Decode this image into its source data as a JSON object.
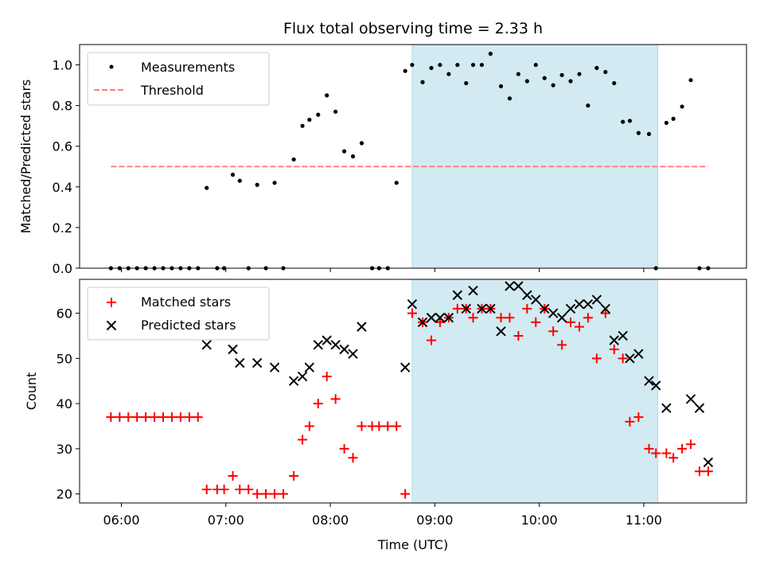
{
  "chart_data": [
    {
      "type": "scatter",
      "title": "Flux total observing time = 2.33 h",
      "xlabel": "",
      "ylabel": "Matched/Predicted stars",
      "xlim": [
        "05:36",
        "11:59"
      ],
      "ylim": [
        0,
        1.1
      ],
      "x_ticks": [
        "06:00",
        "07:00",
        "08:00",
        "09:00",
        "10:00",
        "11:00"
      ],
      "x_tick_labels_shown": false,
      "y_ticks": [
        "0.0",
        "0.2",
        "0.4",
        "0.6",
        "0.8",
        "1.0"
      ],
      "highlight_span": {
        "start": "08:47",
        "end": "11:08",
        "color": "#add8e6"
      },
      "legend": {
        "position": "top-left",
        "entries": [
          "Measurements",
          "Threshold"
        ]
      },
      "series": [
        {
          "name": "Measurements",
          "marker": "dot",
          "color": "#000000",
          "x": [
            "05:54",
            "05:59",
            "06:04",
            "06:09",
            "06:14",
            "06:19",
            "06:24",
            "06:29",
            "06:34",
            "06:39",
            "06:44",
            "06:49",
            "06:55",
            "06:59",
            "07:04",
            "07:08",
            "07:13",
            "07:18",
            "07:23",
            "07:28",
            "07:33",
            "07:39",
            "07:44",
            "07:48",
            "07:53",
            "07:58",
            "08:03",
            "08:08",
            "08:13",
            "08:18",
            "08:24",
            "08:28",
            "08:33",
            "08:38",
            "08:43",
            "08:47",
            "08:53",
            "08:58",
            "09:03",
            "09:08",
            "09:13",
            "09:18",
            "09:22",
            "09:27",
            "09:32",
            "09:38",
            "09:43",
            "09:48",
            "09:53",
            "09:58",
            "10:03",
            "10:08",
            "10:13",
            "10:18",
            "10:23",
            "10:28",
            "10:33",
            "10:38",
            "10:43",
            "10:48",
            "10:52",
            "10:57",
            "11:03",
            "11:07",
            "11:13",
            "11:17",
            "11:22",
            "11:27",
            "11:32",
            "11:37"
          ],
          "y": [
            0.0,
            0.0,
            0.0,
            0.0,
            0.0,
            0.0,
            0.0,
            0.0,
            0.0,
            0.0,
            0.0,
            0.395,
            0.0,
            0.0,
            0.46,
            0.43,
            0.0,
            0.41,
            0.0,
            0.42,
            0.0,
            0.535,
            0.7,
            0.73,
            0.755,
            0.85,
            0.77,
            0.575,
            0.55,
            0.615,
            0.0,
            0.0,
            0.0,
            0.42,
            0.97,
            1.0,
            0.915,
            0.985,
            1.0,
            0.955,
            1.0,
            0.91,
            1.0,
            1.0,
            1.055,
            0.895,
            0.835,
            0.955,
            0.92,
            1.0,
            0.935,
            0.9,
            0.95,
            0.92,
            0.955,
            0.8,
            0.985,
            0.965,
            0.91,
            0.72,
            0.725,
            0.665,
            0.66,
            0.0,
            0.715,
            0.735,
            0.795,
            0.925,
            0.0,
            0.0
          ]
        },
        {
          "name": "Threshold",
          "style": "dashed",
          "color": "#ff7f7f",
          "x": [
            "05:54",
            "11:37"
          ],
          "y": [
            0.5,
            0.5
          ]
        }
      ]
    },
    {
      "type": "scatter",
      "title": "",
      "xlabel": "Time (UTC)",
      "ylabel": "Count",
      "xlim": [
        "05:36",
        "11:59"
      ],
      "ylim": [
        18,
        67.5
      ],
      "x_ticks": [
        "06:00",
        "07:00",
        "08:00",
        "09:00",
        "10:00",
        "11:00"
      ],
      "y_ticks": [
        "20",
        "30",
        "40",
        "50",
        "60"
      ],
      "highlight_span": {
        "start": "08:47",
        "end": "11:08",
        "color": "#add8e6"
      },
      "legend": {
        "position": "top-left",
        "entries": [
          "Matched stars",
          "Predicted stars"
        ]
      },
      "series": [
        {
          "name": "Matched stars",
          "marker": "plus",
          "color": "#ff0000",
          "x": [
            "05:54",
            "05:59",
            "06:04",
            "06:09",
            "06:14",
            "06:19",
            "06:24",
            "06:29",
            "06:34",
            "06:39",
            "06:44",
            "06:49",
            "06:55",
            "06:59",
            "07:04",
            "07:08",
            "07:13",
            "07:18",
            "07:23",
            "07:28",
            "07:33",
            "07:39",
            "07:44",
            "07:48",
            "07:53",
            "07:58",
            "08:03",
            "08:08",
            "08:13",
            "08:18",
            "08:24",
            "08:28",
            "08:33",
            "08:38",
            "08:43",
            "08:47",
            "08:53",
            "08:58",
            "09:03",
            "09:08",
            "09:13",
            "09:18",
            "09:22",
            "09:27",
            "09:32",
            "09:38",
            "09:43",
            "09:48",
            "09:53",
            "09:58",
            "10:03",
            "10:08",
            "10:13",
            "10:18",
            "10:23",
            "10:28",
            "10:33",
            "10:38",
            "10:43",
            "10:48",
            "10:52",
            "10:57",
            "11:03",
            "11:07",
            "11:13",
            "11:17",
            "11:22",
            "11:27",
            "11:32",
            "11:37"
          ],
          "y": [
            37,
            37,
            37,
            37,
            37,
            37,
            37,
            37,
            37,
            37,
            37,
            21,
            21,
            21,
            24,
            21,
            21,
            20,
            20,
            20,
            20,
            24,
            32,
            35,
            40,
            46,
            41,
            30,
            28,
            35,
            35,
            35,
            35,
            35,
            20,
            60,
            58,
            54,
            58,
            59,
            61,
            61,
            59,
            61,
            61,
            59,
            59,
            55,
            61,
            58,
            61,
            56,
            53,
            58,
            57,
            59,
            50,
            60,
            52,
            50,
            36,
            37,
            30,
            29,
            29,
            28,
            30,
            31,
            25,
            25
          ]
        },
        {
          "name": "Predicted stars",
          "marker": "x",
          "color": "#000000",
          "x": [
            "06:49",
            "07:04",
            "07:08",
            "07:18",
            "07:28",
            "07:39",
            "07:44",
            "07:48",
            "07:53",
            "07:58",
            "08:03",
            "08:08",
            "08:13",
            "08:18",
            "08:43",
            "08:47",
            "08:53",
            "08:58",
            "09:03",
            "09:08",
            "09:13",
            "09:18",
            "09:22",
            "09:27",
            "09:32",
            "09:38",
            "09:43",
            "09:48",
            "09:53",
            "09:58",
            "10:03",
            "10:08",
            "10:13",
            "10:18",
            "10:23",
            "10:28",
            "10:33",
            "10:38",
            "10:43",
            "10:48",
            "10:52",
            "10:57",
            "11:03",
            "11:07",
            "11:13",
            "11:27",
            "11:32",
            "11:37"
          ],
          "y": [
            53,
            52,
            49,
            49,
            48,
            45,
            46,
            48,
            53,
            54,
            53,
            52,
            51,
            57,
            48,
            62,
            58,
            59,
            59,
            59,
            64,
            61,
            65,
            61,
            61,
            56,
            66,
            66,
            64,
            63,
            61,
            60,
            59,
            61,
            62,
            62,
            63,
            61,
            54,
            55,
            50,
            51,
            45,
            44,
            39,
            41,
            39,
            27
          ]
        }
      ]
    }
  ]
}
